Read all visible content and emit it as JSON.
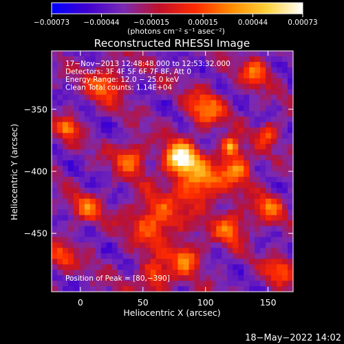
{
  "chart_data": {
    "type": "heatmap",
    "title": "Reconstructed RHESSI Image",
    "xlabel": "Heliocentric X (arcsec)",
    "ylabel": "Heliocentric Y (arcsec)",
    "xlim": [
      -23,
      170
    ],
    "ylim": [
      -497,
      -303
    ],
    "x_ticks": [
      0,
      50,
      100,
      150
    ],
    "y_ticks": [
      -350,
      -400,
      -450
    ],
    "x_tick_labels": [
      "0",
      "50",
      "100",
      "150"
    ],
    "y_tick_labels": [
      "−350",
      "−400",
      "−450"
    ],
    "colorbar": {
      "range": [
        -0.00073,
        0.00073
      ],
      "ticks": [
        -0.00073,
        -0.00044,
        -0.00015,
        0.00015,
        0.00044,
        0.00073
      ],
      "tick_labels": [
        "−0.00073",
        "−0.00044",
        "−0.00015",
        "0.00015",
        "0.00044",
        "0.00073"
      ],
      "units_label": "(photons cm⁻² s⁻¹ asec⁻²)",
      "colormap": [
        "#0000ff",
        "#4000d0",
        "#7a2ab4",
        "#c0102a",
        "#ff2a00",
        "#ff8a00",
        "#ffd23a",
        "#ffffff"
      ]
    },
    "annotations": [
      "17−Nov−2013 12:48:48.000 to 12:53:32.000",
      "Detectors: 3F 4F 5F 6F 7F 8F, Att 0",
      "Energy Range: 12.0 − 25.0 keV",
      "Clean     Total counts: 1.14E+04"
    ],
    "peak_label": "Position of Peak = [80,−390]",
    "peak": {
      "x": 80,
      "y": -390,
      "value": 0.00073
    },
    "sources": [
      {
        "x": 80,
        "y": -390,
        "value": 0.00073,
        "sigma": 9
      },
      {
        "x": 120,
        "y": -380,
        "value": 0.00045,
        "sigma": 5
      },
      {
        "x": 125,
        "y": -398,
        "value": 0.0003,
        "sigma": 9
      },
      {
        "x": 95,
        "y": -410,
        "value": 0.00035,
        "sigma": 12
      },
      {
        "x": 60,
        "y": -440,
        "value": 0.00025,
        "sigma": 14
      },
      {
        "x": 85,
        "y": -470,
        "value": 0.0003,
        "sigma": 8
      },
      {
        "x": 60,
        "y": -485,
        "value": 0.0002,
        "sigma": 9
      },
      {
        "x": 100,
        "y": -350,
        "value": 0.00025,
        "sigma": 10
      },
      {
        "x": 120,
        "y": -445,
        "value": 0.00025,
        "sigma": 9
      },
      {
        "x": 40,
        "y": -390,
        "value": 0.00022,
        "sigma": 9
      },
      {
        "x": -10,
        "y": -365,
        "value": 0.00028,
        "sigma": 6
      },
      {
        "x": 5,
        "y": -430,
        "value": 0.00018,
        "sigma": 8
      },
      {
        "x": 150,
        "y": -370,
        "value": 0.0002,
        "sigma": 6
      },
      {
        "x": 150,
        "y": -430,
        "value": 0.0002,
        "sigma": 8
      },
      {
        "x": 20,
        "y": -330,
        "value": 0.0002,
        "sigma": 10
      },
      {
        "x": 140,
        "y": -320,
        "value": 0.00018,
        "sigma": 8
      },
      {
        "x": -15,
        "y": -470,
        "value": 0.00016,
        "sigma": 7
      },
      {
        "x": 160,
        "y": -480,
        "value": 0.00015,
        "sigma": 8
      }
    ],
    "grid": false
  },
  "footer": {
    "date": "18−May−2022 14:02"
  }
}
